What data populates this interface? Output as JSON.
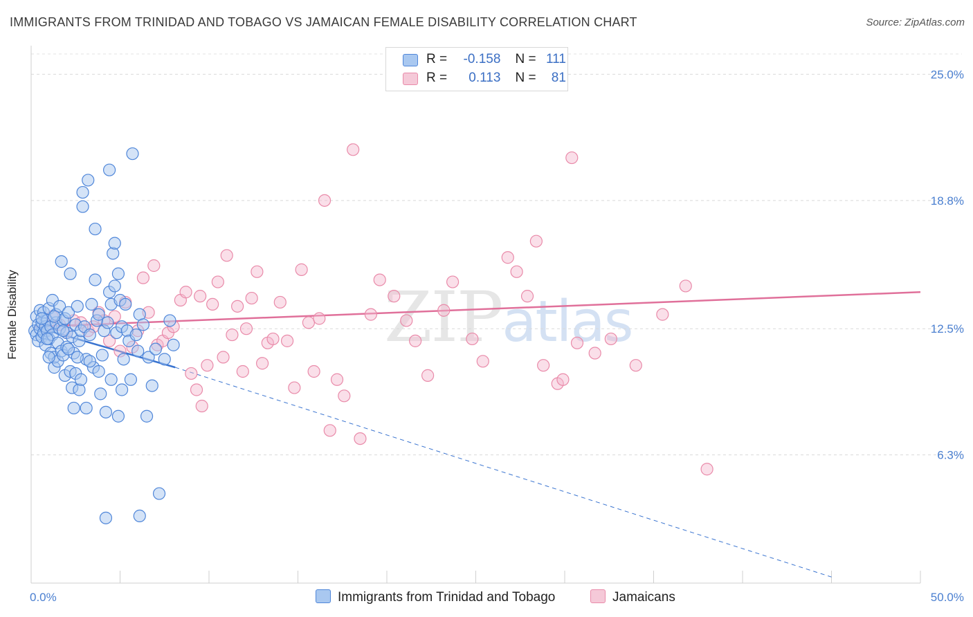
{
  "title": "IMMIGRANTS FROM TRINIDAD AND TOBAGO VS JAMAICAN FEMALE DISABILITY CORRELATION CHART",
  "source": "Source: ZipAtlas.com",
  "watermark": {
    "zip": "ZIP",
    "atlas": "atlas"
  },
  "legend_top": {
    "rows": [
      {
        "r_label": "R =",
        "r_value": "-0.158",
        "n_label": "N =",
        "n_value": "111"
      },
      {
        "r_label": "R =",
        "r_value": "0.113",
        "n_label": "N =",
        "n_value": "81"
      }
    ]
  },
  "legend_bottom": {
    "series1": "Immigrants from Trinidad and Tobago",
    "series2": "Jamaicans"
  },
  "colors": {
    "blue_fill": "#a9c8f0",
    "blue_stroke": "#4f86d9",
    "blue_line": "#3a74d0",
    "pink_fill": "#f5b8ce",
    "pink_stroke": "#e98aa9",
    "pink_line": "#e0709a",
    "tick_label": "#4a7fd0"
  },
  "chart_data": {
    "type": "scatter",
    "title": "IMMIGRANTS FROM TRINIDAD AND TOBAGO VS JAMAICAN FEMALE DISABILITY CORRELATION CHART",
    "xlabel": "",
    "ylabel": "Female Disability",
    "xlim": [
      0,
      50
    ],
    "ylim": [
      0,
      26
    ],
    "x_tick_labels": [
      "0.0%",
      "50.0%"
    ],
    "y_ticks": [
      6.3,
      12.5,
      18.8,
      25.0
    ],
    "y_tick_labels": [
      "6.3%",
      "12.5%",
      "18.8%",
      "25.0%"
    ],
    "grid": "horizontal dashed",
    "legend_position": "top-center",
    "series": [
      {
        "name": "Immigrants from Trinidad and Tobago",
        "R": -0.158,
        "N": 111,
        "trend": {
          "x": [
            0.2,
            8.1,
            45.0
          ],
          "y": [
            12.6,
            10.6,
            0.3
          ],
          "solid_until_x": 8.1
        },
        "points": [
          [
            0.2,
            12.4
          ],
          [
            0.3,
            13.1
          ],
          [
            0.3,
            12.2
          ],
          [
            0.4,
            11.9
          ],
          [
            0.4,
            12.7
          ],
          [
            0.5,
            12.5
          ],
          [
            0.5,
            13.4
          ],
          [
            0.6,
            12.1
          ],
          [
            0.6,
            12.8
          ],
          [
            0.7,
            13.3
          ],
          [
            0.7,
            12.3
          ],
          [
            0.8,
            12.6
          ],
          [
            0.8,
            11.7
          ],
          [
            0.9,
            12.9
          ],
          [
            0.9,
            12.4
          ],
          [
            1.0,
            13.5
          ],
          [
            1.0,
            12.0
          ],
          [
            1.1,
            11.3
          ],
          [
            1.1,
            12.6
          ],
          [
            1.2,
            13.9
          ],
          [
            1.2,
            12.2
          ],
          [
            1.3,
            10.6
          ],
          [
            1.3,
            11.1
          ],
          [
            1.4,
            12.8
          ],
          [
            1.4,
            13.2
          ],
          [
            1.5,
            11.8
          ],
          [
            1.5,
            10.9
          ],
          [
            1.6,
            12.5
          ],
          [
            1.6,
            13.6
          ],
          [
            1.7,
            11.4
          ],
          [
            1.7,
            15.8
          ],
          [
            1.8,
            12.9
          ],
          [
            1.8,
            11.2
          ],
          [
            1.9,
            13.0
          ],
          [
            1.9,
            10.2
          ],
          [
            2.0,
            12.3
          ],
          [
            2.0,
            11.6
          ],
          [
            2.1,
            13.3
          ],
          [
            2.2,
            10.4
          ],
          [
            2.2,
            15.2
          ],
          [
            2.3,
            12.1
          ],
          [
            2.3,
            9.6
          ],
          [
            2.4,
            11.3
          ],
          [
            2.4,
            8.6
          ],
          [
            2.5,
            12.7
          ],
          [
            2.5,
            10.3
          ],
          [
            2.6,
            13.6
          ],
          [
            2.7,
            9.5
          ],
          [
            2.7,
            11.9
          ],
          [
            2.8,
            12.4
          ],
          [
            2.8,
            10.0
          ],
          [
            2.9,
            19.2
          ],
          [
            2.9,
            18.5
          ],
          [
            3.0,
            12.6
          ],
          [
            3.1,
            11.0
          ],
          [
            3.1,
            8.6
          ],
          [
            3.2,
            19.8
          ],
          [
            3.3,
            12.2
          ],
          [
            3.4,
            13.7
          ],
          [
            3.5,
            10.6
          ],
          [
            3.6,
            17.4
          ],
          [
            3.6,
            14.9
          ],
          [
            3.7,
            12.9
          ],
          [
            3.8,
            10.4
          ],
          [
            3.9,
            9.3
          ],
          [
            4.0,
            11.2
          ],
          [
            4.1,
            12.4
          ],
          [
            4.2,
            8.4
          ],
          [
            4.2,
            3.2
          ],
          [
            4.3,
            12.8
          ],
          [
            4.4,
            20.3
          ],
          [
            4.4,
            14.3
          ],
          [
            4.5,
            10.0
          ],
          [
            4.5,
            13.7
          ],
          [
            4.6,
            16.2
          ],
          [
            4.7,
            14.6
          ],
          [
            4.7,
            16.7
          ],
          [
            4.8,
            12.3
          ],
          [
            4.9,
            15.2
          ],
          [
            4.9,
            8.2
          ],
          [
            5.0,
            13.9
          ],
          [
            5.1,
            12.6
          ],
          [
            5.1,
            9.5
          ],
          [
            5.2,
            11.0
          ],
          [
            5.3,
            13.7
          ],
          [
            5.4,
            12.4
          ],
          [
            5.5,
            11.9
          ],
          [
            5.6,
            10.0
          ],
          [
            5.7,
            21.1
          ],
          [
            5.9,
            12.2
          ],
          [
            6.0,
            11.4
          ],
          [
            6.1,
            13.2
          ],
          [
            6.1,
            3.3
          ],
          [
            6.3,
            12.7
          ],
          [
            6.5,
            8.2
          ],
          [
            6.6,
            11.1
          ],
          [
            6.8,
            9.7
          ],
          [
            7.0,
            11.5
          ],
          [
            7.2,
            4.4
          ],
          [
            7.5,
            11.0
          ],
          [
            7.8,
            12.9
          ],
          [
            8.0,
            11.7
          ],
          [
            1.3,
            13.1
          ],
          [
            2.1,
            11.5
          ],
          [
            0.6,
            13.0
          ],
          [
            1.0,
            11.1
          ],
          [
            2.6,
            11.1
          ],
          [
            3.3,
            10.9
          ],
          [
            1.8,
            12.4
          ],
          [
            0.9,
            12.0
          ],
          [
            3.8,
            13.2
          ]
        ]
      },
      {
        "name": "Jamaicans",
        "R": 0.113,
        "N": 81,
        "trend": {
          "x": [
            0.2,
            50.0
          ],
          "y": [
            12.6,
            14.3
          ]
        },
        "points": [
          [
            0.8,
            12.5
          ],
          [
            1.2,
            13.1
          ],
          [
            1.6,
            12.7
          ],
          [
            2.0,
            12.3
          ],
          [
            2.4,
            12.9
          ],
          [
            2.8,
            12.8
          ],
          [
            3.2,
            12.4
          ],
          [
            3.5,
            12.6
          ],
          [
            3.8,
            13.3
          ],
          [
            4.1,
            12.9
          ],
          [
            4.4,
            11.9
          ],
          [
            4.7,
            13.1
          ],
          [
            5.0,
            11.4
          ],
          [
            5.3,
            13.8
          ],
          [
            5.7,
            11.6
          ],
          [
            6.0,
            12.4
          ],
          [
            6.3,
            15.0
          ],
          [
            6.6,
            13.3
          ],
          [
            6.9,
            15.6
          ],
          [
            7.1,
            11.7
          ],
          [
            7.4,
            11.9
          ],
          [
            7.7,
            12.3
          ],
          [
            8.0,
            12.6
          ],
          [
            8.4,
            13.9
          ],
          [
            8.7,
            14.3
          ],
          [
            9.0,
            10.3
          ],
          [
            9.3,
            9.5
          ],
          [
            9.5,
            14.1
          ],
          [
            9.6,
            8.7
          ],
          [
            9.9,
            10.7
          ],
          [
            10.2,
            13.7
          ],
          [
            10.5,
            14.8
          ],
          [
            10.8,
            11.1
          ],
          [
            11.0,
            16.1
          ],
          [
            11.3,
            12.2
          ],
          [
            11.6,
            13.6
          ],
          [
            11.9,
            10.4
          ],
          [
            12.1,
            12.5
          ],
          [
            12.4,
            14.0
          ],
          [
            12.7,
            15.3
          ],
          [
            13.0,
            10.8
          ],
          [
            13.3,
            11.8
          ],
          [
            13.6,
            12.0
          ],
          [
            14.0,
            13.8
          ],
          [
            14.4,
            11.9
          ],
          [
            14.8,
            9.6
          ],
          [
            15.2,
            15.4
          ],
          [
            15.6,
            12.8
          ],
          [
            15.9,
            10.4
          ],
          [
            16.2,
            13.0
          ],
          [
            16.5,
            18.8
          ],
          [
            16.8,
            7.5
          ],
          [
            17.2,
            10.0
          ],
          [
            17.6,
            9.2
          ],
          [
            18.1,
            21.3
          ],
          [
            18.5,
            7.1
          ],
          [
            19.1,
            13.2
          ],
          [
            19.6,
            14.9
          ],
          [
            20.4,
            14.1
          ],
          [
            21.1,
            12.9
          ],
          [
            21.6,
            11.9
          ],
          [
            22.3,
            10.2
          ],
          [
            23.2,
            13.4
          ],
          [
            23.7,
            14.8
          ],
          [
            24.8,
            12.0
          ],
          [
            25.4,
            10.9
          ],
          [
            26.8,
            16.0
          ],
          [
            27.3,
            15.3
          ],
          [
            27.9,
            14.1
          ],
          [
            28.4,
            16.8
          ],
          [
            28.8,
            10.7
          ],
          [
            29.6,
            9.8
          ],
          [
            29.9,
            10.0
          ],
          [
            30.4,
            20.9
          ],
          [
            30.7,
            11.8
          ],
          [
            31.7,
            11.3
          ],
          [
            32.6,
            12.0
          ],
          [
            34.0,
            10.7
          ],
          [
            35.5,
            13.2
          ],
          [
            36.8,
            14.6
          ],
          [
            38.0,
            5.6
          ]
        ]
      }
    ]
  }
}
